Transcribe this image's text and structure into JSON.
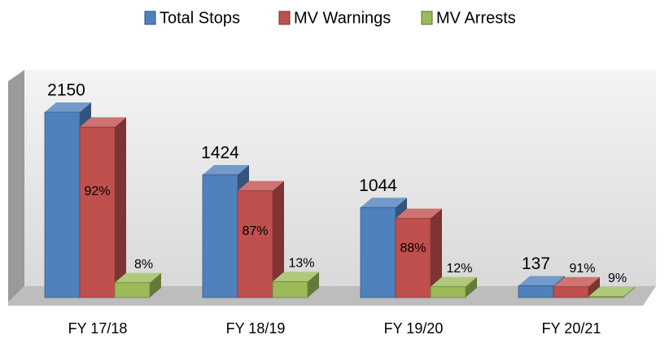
{
  "chart_data": {
    "type": "bar3d",
    "categories": [
      "FY 17/18",
      "FY 18/19",
      "FY 19/20",
      "FY 20/21"
    ],
    "series": [
      {
        "name": "Total Stops",
        "color": "#4f81bd",
        "values": [
          2150,
          1424,
          1044,
          137
        ]
      },
      {
        "name": "MV Warnings",
        "color": "#c0504d",
        "values": [
          92,
          87,
          88,
          91
        ],
        "value_labels": [
          "92%",
          "87%",
          "88%",
          "91%"
        ]
      },
      {
        "name": "MV Arrests",
        "color": "#9bbb59",
        "values": [
          8,
          13,
          12,
          9
        ],
        "value_labels": [
          "8%",
          "13%",
          "12%",
          "9%"
        ]
      }
    ]
  }
}
